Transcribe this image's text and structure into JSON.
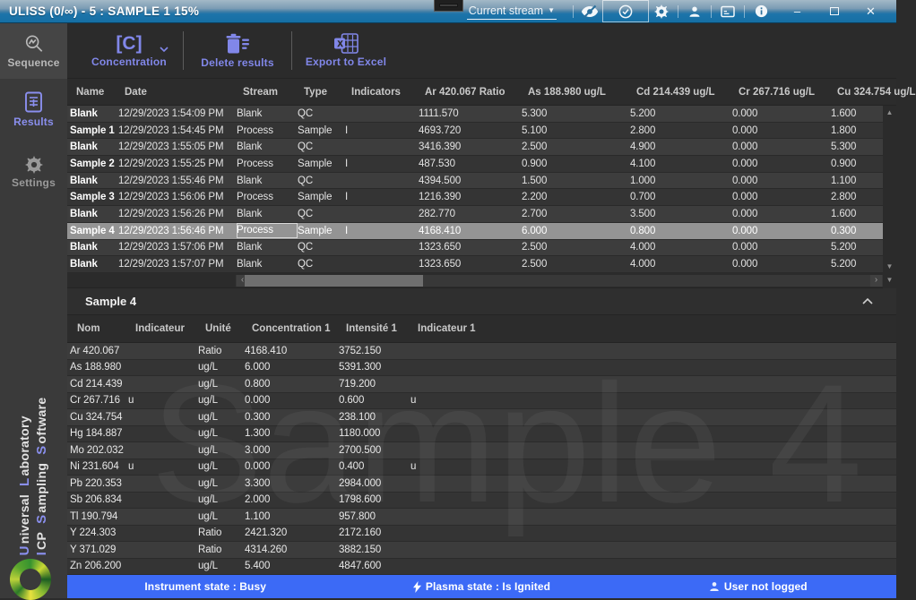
{
  "title_bar": {
    "title": "ULISS  (0/∞) - 5 : SAMPLE 1  15%",
    "stream_selector_label": "Current stream"
  },
  "icons": {
    "dropdown_caret": "▼",
    "minimize": "–",
    "close": "✕",
    "scroll_up": "▲",
    "scroll_down": "▼",
    "scroll_left": "‹",
    "scroll_right": "›"
  },
  "toolbar": {
    "concentration_icon_text": "[C]",
    "concentration_label": "Concentration",
    "delete_label": "Delete results",
    "export_label": "Export to Excel"
  },
  "sidebar": {
    "items": [
      {
        "label": "Sequence"
      },
      {
        "label": "Results"
      },
      {
        "label": "Settings"
      }
    ],
    "branding": {
      "u": "U",
      "niversal": "niversal",
      "l": "L",
      "aboratory": "aboratory",
      "i": "I",
      "cp": "CP",
      "s1": "S",
      "ampling": "ampling",
      "s2": "S",
      "oftware": "oftware"
    }
  },
  "results_table": {
    "columns": [
      "Name",
      "Date",
      "Stream",
      "Type",
      "Indicators",
      "Ar 420.067 Ratio",
      "As 188.980 ug/L",
      "Cd 214.439 ug/L",
      "Cr 267.716 ug/L",
      "Cu 324.754 ug/L"
    ],
    "selected_row_index": 7,
    "rows": [
      {
        "name": "Blank",
        "date": "12/29/2023 1:54:09 PM",
        "stream": "Blank",
        "type": "QC",
        "indicator": "",
        "values": [
          "1111.570",
          "5.300",
          "5.200",
          "0.000",
          "1.600"
        ]
      },
      {
        "name": "Sample 1",
        "date": "12/29/2023 1:54:45 PM",
        "stream": "Process",
        "type": "Sample",
        "indicator": "I",
        "values": [
          "4693.720",
          "5.100",
          "2.800",
          "0.000",
          "1.800"
        ]
      },
      {
        "name": "Blank",
        "date": "12/29/2023 1:55:05 PM",
        "stream": "Blank",
        "type": "QC",
        "indicator": "",
        "values": [
          "3416.390",
          "2.500",
          "4.900",
          "0.000",
          "5.300"
        ]
      },
      {
        "name": "Sample 2",
        "date": "12/29/2023 1:55:25 PM",
        "stream": "Process",
        "type": "Sample",
        "indicator": "I",
        "values": [
          "487.530",
          "0.900",
          "4.100",
          "0.000",
          "0.900"
        ]
      },
      {
        "name": "Blank",
        "date": "12/29/2023 1:55:46 PM",
        "stream": "Blank",
        "type": "QC",
        "indicator": "",
        "values": [
          "4394.500",
          "1.500",
          "1.000",
          "0.000",
          "1.100"
        ]
      },
      {
        "name": "Sample 3",
        "date": "12/29/2023 1:56:06 PM",
        "stream": "Process",
        "type": "Sample",
        "indicator": "I",
        "values": [
          "1216.390",
          "2.200",
          "0.700",
          "0.000",
          "2.800"
        ]
      },
      {
        "name": "Blank",
        "date": "12/29/2023 1:56:26 PM",
        "stream": "Blank",
        "type": "QC",
        "indicator": "",
        "values": [
          "282.770",
          "2.700",
          "3.500",
          "0.000",
          "1.600"
        ]
      },
      {
        "name": "Sample 4",
        "date": "12/29/2023 1:56:46 PM",
        "stream": "Process",
        "type": "Sample",
        "indicator": "I",
        "values": [
          "4168.410",
          "6.000",
          "0.800",
          "0.000",
          "0.300"
        ]
      },
      {
        "name": "Blank",
        "date": "12/29/2023 1:57:06 PM",
        "stream": "Blank",
        "type": "QC",
        "indicator": "",
        "values": [
          "1323.650",
          "2.500",
          "4.000",
          "0.000",
          "5.200"
        ]
      },
      {
        "name": "Blank",
        "date": "12/29/2023 1:57:07 PM",
        "stream": "Blank",
        "type": "QC",
        "indicator": "",
        "values": [
          "1323.650",
          "2.500",
          "4.000",
          "0.000",
          "5.200"
        ]
      }
    ]
  },
  "detail_panel": {
    "title": "Sample 4",
    "watermark": "Sample 4",
    "columns": [
      "Nom",
      "Indicateur",
      "Unité",
      "Concentration 1",
      "Intensité 1",
      "Indicateur 1"
    ],
    "rows": [
      {
        "nom": "Ar 420.067",
        "indicateur": "",
        "unite": "Ratio",
        "concentration": "4168.410",
        "intensite": "3752.150",
        "indicateur1": ""
      },
      {
        "nom": "As 188.980",
        "indicateur": "",
        "unite": "ug/L",
        "concentration": "6.000",
        "intensite": "5391.300",
        "indicateur1": ""
      },
      {
        "nom": "Cd 214.439",
        "indicateur": "",
        "unite": "ug/L",
        "concentration": "0.800",
        "intensite": "719.200",
        "indicateur1": ""
      },
      {
        "nom": "Cr 267.716",
        "indicateur": "u",
        "unite": "ug/L",
        "concentration": "0.000",
        "intensite": "0.600",
        "indicateur1": "u"
      },
      {
        "nom": "Cu 324.754",
        "indicateur": "",
        "unite": "ug/L",
        "concentration": "0.300",
        "intensite": "238.100",
        "indicateur1": ""
      },
      {
        "nom": "Hg 184.887",
        "indicateur": "",
        "unite": "ug/L",
        "concentration": "1.300",
        "intensite": "1180.000",
        "indicateur1": ""
      },
      {
        "nom": "Mo 202.032",
        "indicateur": "",
        "unite": "ug/L",
        "concentration": "3.000",
        "intensite": "2700.500",
        "indicateur1": ""
      },
      {
        "nom": "Ni 231.604",
        "indicateur": "u",
        "unite": "ug/L",
        "concentration": "0.000",
        "intensite": "0.400",
        "indicateur1": "u"
      },
      {
        "nom": "Pb 220.353",
        "indicateur": "",
        "unite": "ug/L",
        "concentration": "3.300",
        "intensite": "2984.000",
        "indicateur1": ""
      },
      {
        "nom": "Sb 206.834",
        "indicateur": "",
        "unite": "ug/L",
        "concentration": "2.000",
        "intensite": "1798.600",
        "indicateur1": ""
      },
      {
        "nom": "Tl 190.794",
        "indicateur": "",
        "unite": "ug/L",
        "concentration": "1.100",
        "intensite": "957.800",
        "indicateur1": ""
      },
      {
        "nom": "Y 224.303",
        "indicateur": "",
        "unite": "Ratio",
        "concentration": "2421.320",
        "intensite": "2172.160",
        "indicateur1": ""
      },
      {
        "nom": "Y 371.029",
        "indicateur": "",
        "unite": "Ratio",
        "concentration": "4314.260",
        "intensite": "3882.150",
        "indicateur1": ""
      },
      {
        "nom": "Zn 206.200",
        "indicateur": "",
        "unite": "ug/L",
        "concentration": "5.400",
        "intensite": "4847.600",
        "indicateur1": ""
      }
    ]
  },
  "status_bar": {
    "instrument": "Instrument state : Busy",
    "plasma": "Plasma state : Is Ignited",
    "user": "User not logged"
  },
  "colors": {
    "accent_purple": "#8187e9",
    "sidebar_purple": "#8a8fee",
    "titlebar_blue": "#1d74aa",
    "status_blue": "#3c6af6",
    "selected_row_gray": "#949494"
  }
}
